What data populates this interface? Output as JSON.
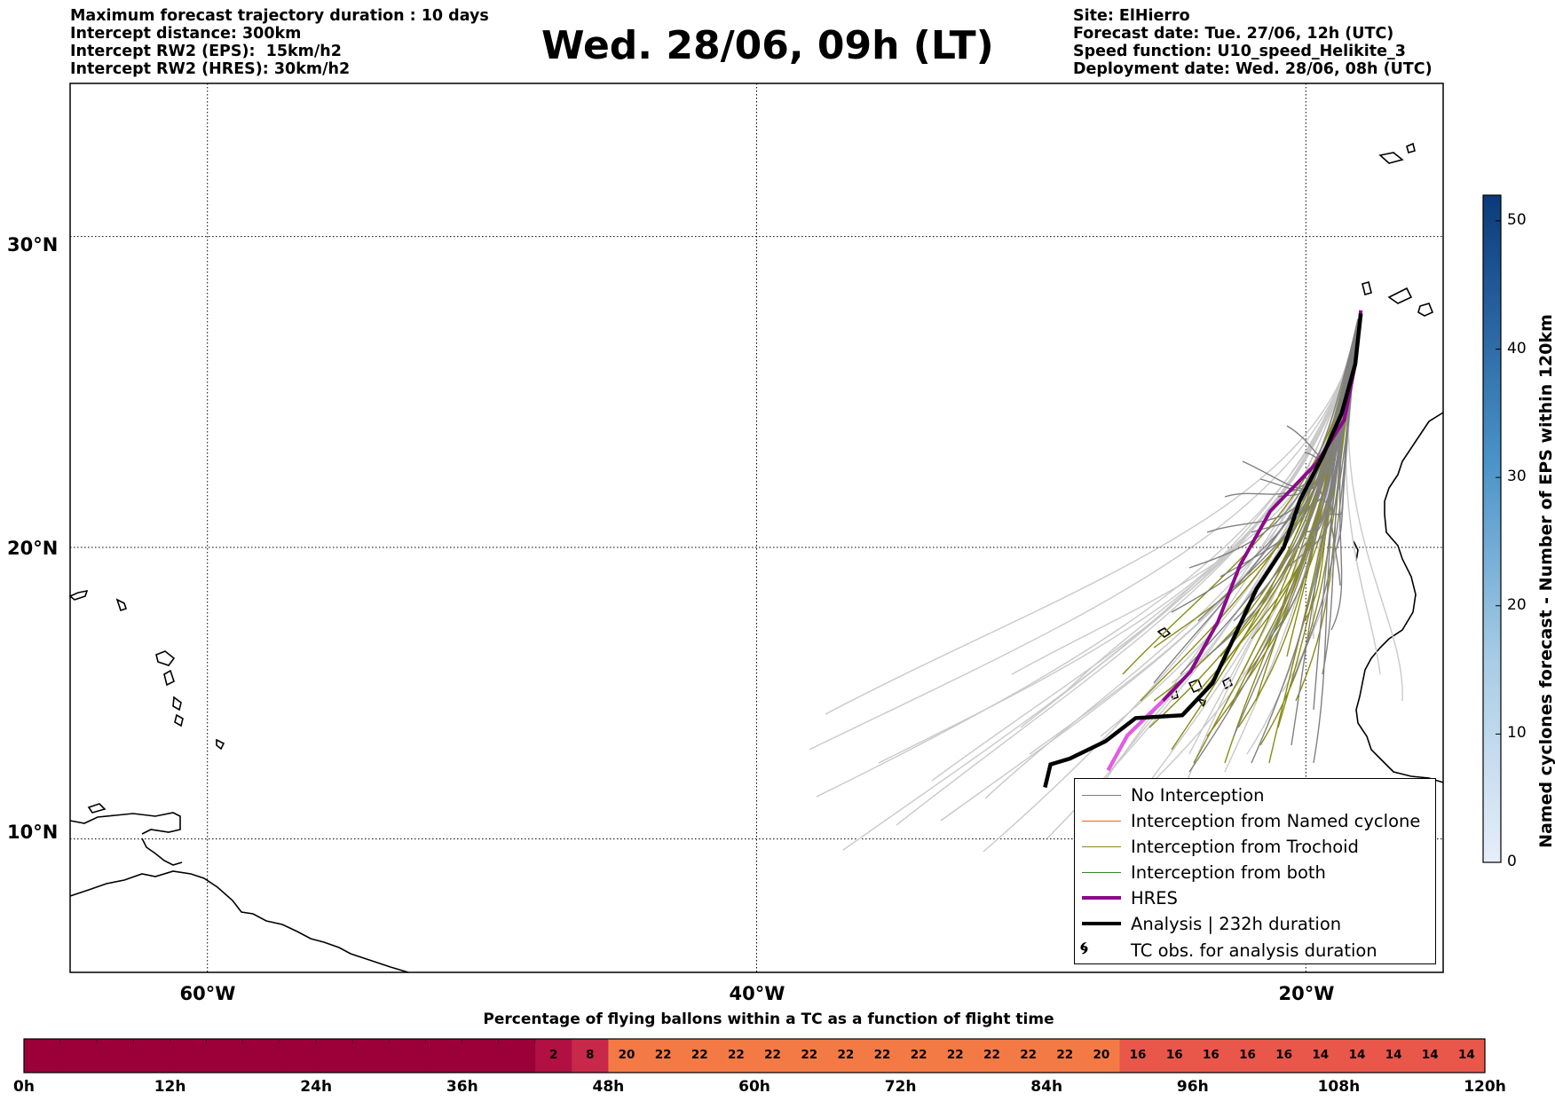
{
  "header": {
    "left_lines": [
      "Maximum forecast trajectory duration : 10 days",
      "Intercept distance: 300km",
      "Intercept RW2 (EPS):  15km/h2",
      "Intercept RW2 (HRES): 30km/h2"
    ],
    "title": "Wed. 28/06, 09h (LT)",
    "right_lines": [
      "Site: ElHierro",
      "Forecast date: Tue. 27/06, 12h (UTC)",
      "Speed function: U10_speed_Helikite_3",
      "Deployment date: Wed. 28/06, 08h (UTC)"
    ]
  },
  "map": {
    "lat_labels": [
      "30°N",
      "20°N",
      "10°N"
    ],
    "lon_labels": [
      "60°W",
      "40°W",
      "20°W"
    ],
    "lat_values": [
      30,
      20,
      10
    ],
    "lon_values": [
      -60,
      -40,
      -20
    ],
    "extent": {
      "lon_min": -65,
      "lon_max": -15,
      "lat_min": 5.3,
      "lat_max": 34.6
    },
    "grid": true
  },
  "legend": {
    "items": [
      {
        "label": "No Interception",
        "color": "#7f7f7f",
        "style": "thin"
      },
      {
        "label": "Interception from Named cyclone",
        "color": "#ff5a1f",
        "style": "thin"
      },
      {
        "label": "Interception from Trochoid",
        "color": "#8a8a18",
        "style": "thin"
      },
      {
        "label": "Interception from both",
        "color": "#2c8a2c",
        "style": "thin"
      },
      {
        "label": "HRES",
        "color": "#8b0a8b",
        "style": "thick"
      },
      {
        "label": "Analysis | 232h duration",
        "color": "#000000",
        "style": "thick"
      },
      {
        "label": "TC obs. for analysis duration",
        "color": "#000000",
        "style": "symbol"
      }
    ]
  },
  "colorbar": {
    "title": "Named cyclones forecast - Number of EPS within 120km",
    "ticks": [
      "0",
      "10",
      "20",
      "30",
      "40",
      "50"
    ],
    "tick_values": [
      0,
      10,
      20,
      30,
      40,
      50
    ],
    "max": 52,
    "color_low": "#e3ecf8",
    "color_high": "#0b3a7a"
  },
  "percentage_bar": {
    "title": "Percentage of flying ballons within a TC as a function of flight time",
    "time_labels": [
      "0h",
      "12h",
      "24h",
      "36h",
      "48h",
      "60h",
      "72h",
      "84h",
      "96h",
      "108h",
      "120h"
    ],
    "cell_count": 40,
    "cell_values": [
      0,
      0,
      0,
      0,
      0,
      0,
      0,
      0,
      0,
      0,
      0,
      0,
      0,
      0,
      2,
      8,
      20,
      22,
      22,
      22,
      22,
      22,
      22,
      22,
      22,
      22,
      22,
      22,
      22,
      20,
      16,
      16,
      16,
      16,
      16,
      14,
      14,
      14,
      14,
      14
    ],
    "cell_labels": [
      "",
      "",
      "",
      "",
      "",
      "",
      "",
      "",
      "",
      "",
      "",
      "",
      "",
      "",
      "2",
      "8",
      "20",
      "22",
      "22",
      "22",
      "22",
      "22",
      "22",
      "22",
      "22",
      "22",
      "22",
      "22",
      "22",
      "20",
      "16",
      "16",
      "16",
      "16",
      "16",
      "14",
      "14",
      "14",
      "14",
      "14"
    ],
    "colors": {
      "zero": "#9b0038",
      "low": "#c8284a",
      "mid": "#f26b4b",
      "high": "#f47a45"
    }
  },
  "chart_data": {
    "type": "map-trajectories",
    "site": "ElHierro",
    "hres_track": [
      [
        -18.0,
        27.7
      ],
      [
        -18.2,
        26.0
      ],
      [
        -18.6,
        24.2
      ],
      [
        -19.6,
        22.8
      ],
      [
        -21.3,
        21.2
      ],
      [
        -22.4,
        19.4
      ],
      [
        -23.2,
        17.5
      ],
      [
        -24.2,
        15.8
      ],
      [
        -25.2,
        14.8
      ],
      [
        -26.5,
        13.6
      ],
      [
        -27.2,
        12.4
      ]
    ],
    "analysis_track": [
      [
        -18.0,
        27.6
      ],
      [
        -18.2,
        26.0
      ],
      [
        -18.7,
        24.4
      ],
      [
        -19.4,
        23.0
      ],
      [
        -20.2,
        21.6
      ],
      [
        -20.8,
        20.0
      ],
      [
        -21.8,
        18.6
      ],
      [
        -22.6,
        17.0
      ],
      [
        -23.4,
        15.4
      ],
      [
        -24.5,
        14.3
      ],
      [
        -26.2,
        14.2
      ],
      [
        -27.3,
        13.4
      ],
      [
        -28.6,
        12.8
      ],
      [
        -29.3,
        12.6
      ],
      [
        -29.5,
        11.8
      ]
    ]
  }
}
